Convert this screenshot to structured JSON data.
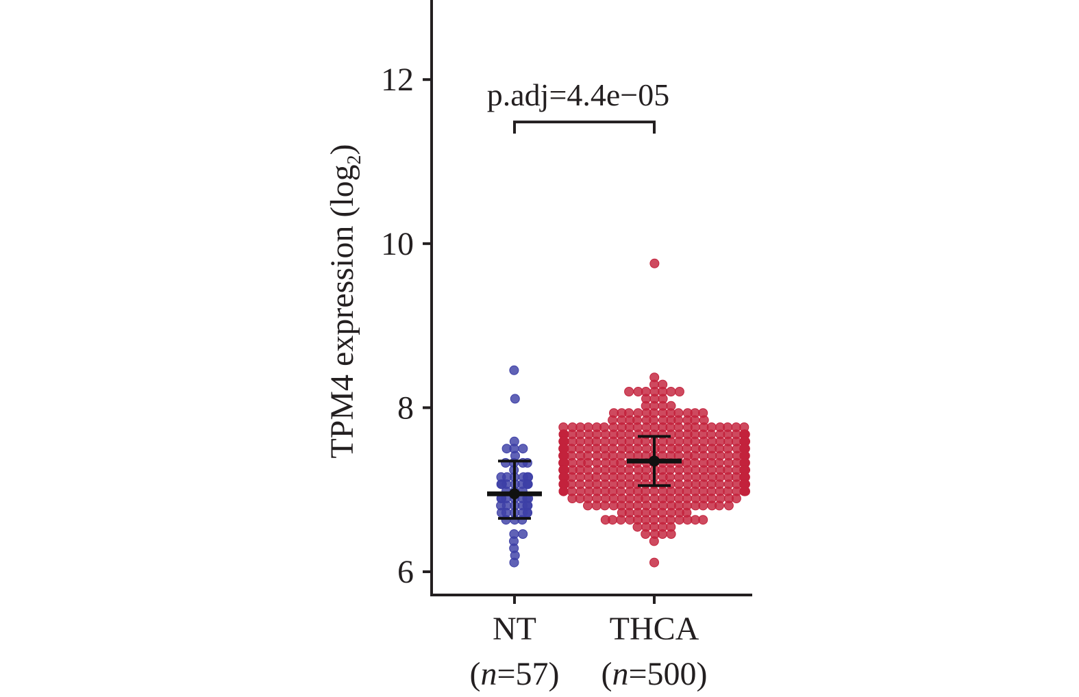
{
  "chart_data": {
    "type": "scatter",
    "ylabel_main": "TPM4 expression (log",
    "ylabel_sub": "2",
    "ylabel_close": ")",
    "ylim": [
      5.7,
      12.97
    ],
    "yticks": [
      {
        "value": 6,
        "label": "6"
      },
      {
        "value": 8,
        "label": "8"
      },
      {
        "value": 10,
        "label": "10"
      },
      {
        "value": 12,
        "label": "12"
      }
    ],
    "categories": [
      {
        "name": "NT",
        "n_prefix": "(",
        "n_symbol": "n",
        "n_suffix": "=57)",
        "n": 57,
        "color": "#3d3fa6",
        "mean": 6.95,
        "err_low": 6.65,
        "err_high": 7.35,
        "min": 6.1,
        "max": 8.45,
        "max_half_width": 1.6
      },
      {
        "name": "THCA",
        "n_prefix": "(",
        "n_symbol": "n",
        "n_suffix": "=500)",
        "n": 500,
        "color": "#c3223c",
        "mean": 7.35,
        "err_low": 7.05,
        "err_high": 7.65,
        "min": 6.08,
        "max": 9.75,
        "max_half_width": 14
      }
    ],
    "annotation": {
      "text": "p.adj=4.4e−05",
      "y": 11.5
    },
    "grid": false,
    "legend": "none"
  }
}
